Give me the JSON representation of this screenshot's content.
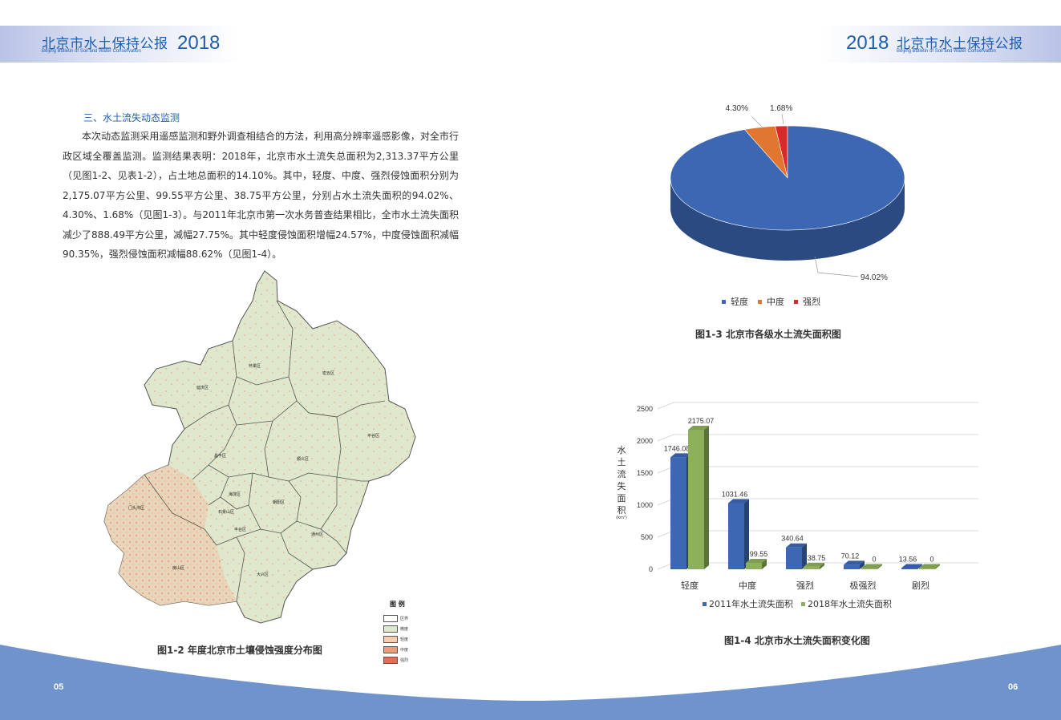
{
  "header": {
    "left": {
      "title_cn": "北京市水土保持公报",
      "title_en": "Beijing Bulletin of Soil and Water Conservation",
      "year": "2018"
    },
    "right": {
      "title_cn": "北京市水土保持公报",
      "title_en": "Beijing Bulletin of Soil and Water Conservation",
      "year": "2018"
    }
  },
  "section": {
    "title": "三、水土流失动态监测",
    "paragraph": "本次动态监测采用遥感监测和野外调查相结合的方法，利用高分辨率遥感影像，对全市行政区域全覆盖监测。监测结果表明：2018年，北京市水土流失总面积为2,313.37平方公里（见图1-2、见表1-2），占土地总面积的14.10%。其中，轻度、中度、强烈侵蚀面积分别为2,175.07平方公里、99.55平方公里、38.75平方公里，分别占水土流失面积的94.02%、4.30%、1.68%（见图1-3）。与2011年北京市第一次水务普查结果相比，全市水土流失面积减少了888.49平方公里，减幅27.75%。其中轻度侵蚀面积增幅24.57%，中度侵蚀面积减幅90.35%，强烈侵蚀面积减幅88.62%（见图1-4）。"
  },
  "map": {
    "caption": "图1-2 年度北京市土壤侵蚀强度分布图",
    "districts": [
      "怀柔区",
      "密云区",
      "延庆区",
      "平谷区",
      "昌平区",
      "顺义区",
      "门头沟区",
      "海淀区",
      "朝阳区",
      "石景山区",
      "丰台区",
      "通州区",
      "房山区",
      "大兴区"
    ],
    "legend": {
      "title": "图 例",
      "items": [
        {
          "label": "区界",
          "color": "#ffffff"
        },
        {
          "label": "微度",
          "color": "#dfe8cc"
        },
        {
          "label": "轻度",
          "color": "#f6cdb0"
        },
        {
          "label": "中度",
          "color": "#ee9c74"
        },
        {
          "label": "强烈",
          "color": "#e2704f"
        }
      ]
    }
  },
  "pie": {
    "caption": "图1-3 北京市各级水土流失面积图",
    "legend": [
      "轻度",
      "中度",
      "强烈"
    ]
  },
  "bar": {
    "caption": "图1-4 北京市水土流失面积变化图",
    "ylabel": "水土流失面积",
    "yunit": "(km²)",
    "legend": [
      "2011年水土流失面积",
      "2018年水土流失面积"
    ]
  },
  "chart_data": [
    {
      "type": "pie",
      "categories": [
        "轻度",
        "中度",
        "强烈"
      ],
      "values": [
        94.02,
        4.3,
        1.68
      ],
      "labels": [
        "94.02%",
        "4.30%",
        "1.68%"
      ],
      "colors": [
        "#3c67b3",
        "#e0762f",
        "#d92a2a"
      ]
    },
    {
      "type": "bar",
      "categories": [
        "轻度",
        "中度",
        "强烈",
        "极强烈",
        "剧烈"
      ],
      "series": [
        {
          "name": "2011年水土流失面积",
          "values": [
            1746.08,
            1031.46,
            340.64,
            70.12,
            13.56
          ],
          "color": "#3c67b3"
        },
        {
          "name": "2018年水土流失面积",
          "values": [
            2175.07,
            99.55,
            38.75,
            0,
            0
          ],
          "color": "#8db05a"
        }
      ],
      "ylabel": "水土流失面积",
      "yunit": "(km²)",
      "ylim": [
        0,
        2500
      ],
      "yticks": [
        "0",
        "500",
        "1000",
        "1500",
        "2000",
        "2500"
      ],
      "grid": true,
      "legend_position": "bottom"
    }
  ],
  "footer": {
    "left_page": "05",
    "right_page": "06",
    "color": "#6f93cc"
  }
}
